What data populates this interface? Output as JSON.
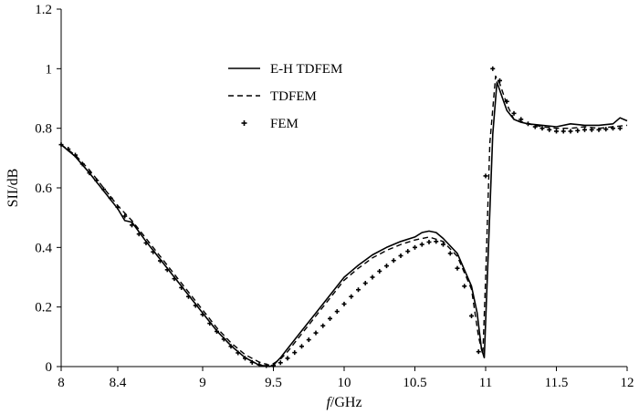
{
  "chart_data": {
    "type": "line",
    "xlabel": {
      "italic": "f",
      "rest": "/GHz"
    },
    "ylabel": "SII/dB",
    "xlim": [
      8,
      12
    ],
    "ylim": [
      0,
      1.2
    ],
    "xticks": [
      8,
      8.4,
      9,
      9.5,
      10,
      10.5,
      11,
      11.5,
      12
    ],
    "xtick_labels": [
      "8",
      "8.4",
      "9",
      "9.5",
      "10",
      "10.5",
      "11",
      "11.5",
      "12"
    ],
    "yticks": [
      0,
      0.2,
      0.4,
      0.6,
      0.8,
      1,
      1.2
    ],
    "ytick_labels": [
      "0",
      "0.2",
      "0.4",
      "0.6",
      "0.8",
      "1",
      "1.2"
    ],
    "grid": false,
    "legend_position": "top-center",
    "series": [
      {
        "name": "E-H TDFEM",
        "style": "solid",
        "color": "#000000",
        "x": [
          8.0,
          8.1,
          8.2,
          8.3,
          8.4,
          8.45,
          8.5,
          8.6,
          8.7,
          8.8,
          8.9,
          9.0,
          9.1,
          9.2,
          9.3,
          9.4,
          9.47,
          9.5,
          9.55,
          9.6,
          9.7,
          9.8,
          9.9,
          10.0,
          10.1,
          10.2,
          10.3,
          10.4,
          10.5,
          10.55,
          10.6,
          10.65,
          10.7,
          10.8,
          10.9,
          10.94,
          10.97,
          10.99,
          11.02,
          11.05,
          11.08,
          11.12,
          11.15,
          11.2,
          11.25,
          11.3,
          11.4,
          11.5,
          11.6,
          11.7,
          11.8,
          11.9,
          11.95,
          12.0
        ],
        "y": [
          0.745,
          0.705,
          0.65,
          0.59,
          0.53,
          0.49,
          0.485,
          0.42,
          0.36,
          0.3,
          0.24,
          0.18,
          0.12,
          0.07,
          0.03,
          0.005,
          0.0,
          0.005,
          0.03,
          0.06,
          0.12,
          0.18,
          0.24,
          0.3,
          0.34,
          0.375,
          0.4,
          0.42,
          0.435,
          0.45,
          0.455,
          0.45,
          0.43,
          0.38,
          0.27,
          0.18,
          0.06,
          0.03,
          0.4,
          0.78,
          0.955,
          0.9,
          0.86,
          0.83,
          0.82,
          0.815,
          0.81,
          0.805,
          0.815,
          0.81,
          0.81,
          0.815,
          0.835,
          0.825
        ]
      },
      {
        "name": "TDFEM",
        "style": "dashed",
        "color": "#000000",
        "x": [
          8.0,
          8.1,
          8.2,
          8.3,
          8.4,
          8.5,
          8.6,
          8.7,
          8.8,
          8.9,
          9.0,
          9.1,
          9.2,
          9.3,
          9.4,
          9.47,
          9.5,
          9.55,
          9.6,
          9.7,
          9.8,
          9.9,
          10.0,
          10.1,
          10.2,
          10.3,
          10.4,
          10.5,
          10.6,
          10.7,
          10.8,
          10.9,
          10.95,
          10.98,
          11.0,
          11.03,
          11.07,
          11.1,
          11.15,
          11.2,
          11.3,
          11.4,
          11.5,
          11.6,
          11.7,
          11.8,
          11.9,
          12.0
        ],
        "y": [
          0.745,
          0.71,
          0.66,
          0.6,
          0.54,
          0.49,
          0.43,
          0.37,
          0.31,
          0.25,
          0.19,
          0.13,
          0.08,
          0.04,
          0.015,
          0.005,
          0.01,
          0.025,
          0.05,
          0.11,
          0.17,
          0.23,
          0.29,
          0.33,
          0.365,
          0.39,
          0.41,
          0.425,
          0.435,
          0.42,
          0.37,
          0.26,
          0.1,
          0.04,
          0.3,
          0.75,
          0.975,
          0.95,
          0.88,
          0.83,
          0.815,
          0.805,
          0.8,
          0.8,
          0.805,
          0.8,
          0.805,
          0.81
        ]
      },
      {
        "name": "FEM",
        "style": "markers",
        "marker": "+",
        "color": "#000000",
        "x": [
          8.0,
          8.05,
          8.1,
          8.15,
          8.2,
          8.25,
          8.3,
          8.35,
          8.4,
          8.45,
          8.5,
          8.55,
          8.6,
          8.65,
          8.7,
          8.75,
          8.8,
          8.85,
          8.9,
          8.95,
          9.0,
          9.05,
          9.1,
          9.15,
          9.2,
          9.25,
          9.3,
          9.35,
          9.4,
          9.45,
          9.5,
          9.55,
          9.6,
          9.65,
          9.7,
          9.75,
          9.8,
          9.85,
          9.9,
          9.95,
          10.0,
          10.05,
          10.1,
          10.15,
          10.2,
          10.25,
          10.3,
          10.35,
          10.4,
          10.45,
          10.5,
          10.55,
          10.6,
          10.65,
          10.7,
          10.75,
          10.8,
          10.85,
          10.9,
          10.95,
          11.0,
          11.05,
          11.1,
          11.15,
          11.2,
          11.25,
          11.3,
          11.35,
          11.4,
          11.45,
          11.5,
          11.55,
          11.6,
          11.65,
          11.7,
          11.75,
          11.8,
          11.85,
          11.9,
          11.95
        ],
        "y": [
          0.745,
          0.73,
          0.71,
          0.68,
          0.65,
          0.625,
          0.595,
          0.565,
          0.535,
          0.505,
          0.475,
          0.445,
          0.415,
          0.385,
          0.355,
          0.325,
          0.295,
          0.265,
          0.235,
          0.205,
          0.175,
          0.145,
          0.118,
          0.092,
          0.068,
          0.046,
          0.028,
          0.014,
          0.006,
          0.003,
          0.004,
          0.013,
          0.028,
          0.047,
          0.068,
          0.09,
          0.113,
          0.137,
          0.161,
          0.185,
          0.21,
          0.235,
          0.258,
          0.28,
          0.3,
          0.32,
          0.338,
          0.356,
          0.372,
          0.387,
          0.4,
          0.41,
          0.418,
          0.42,
          0.41,
          0.38,
          0.33,
          0.27,
          0.17,
          0.05,
          0.64,
          1.0,
          0.96,
          0.89,
          0.85,
          0.83,
          0.815,
          0.805,
          0.8,
          0.795,
          0.79,
          0.79,
          0.79,
          0.792,
          0.795,
          0.795,
          0.795,
          0.797,
          0.8,
          0.8
        ]
      }
    ]
  }
}
